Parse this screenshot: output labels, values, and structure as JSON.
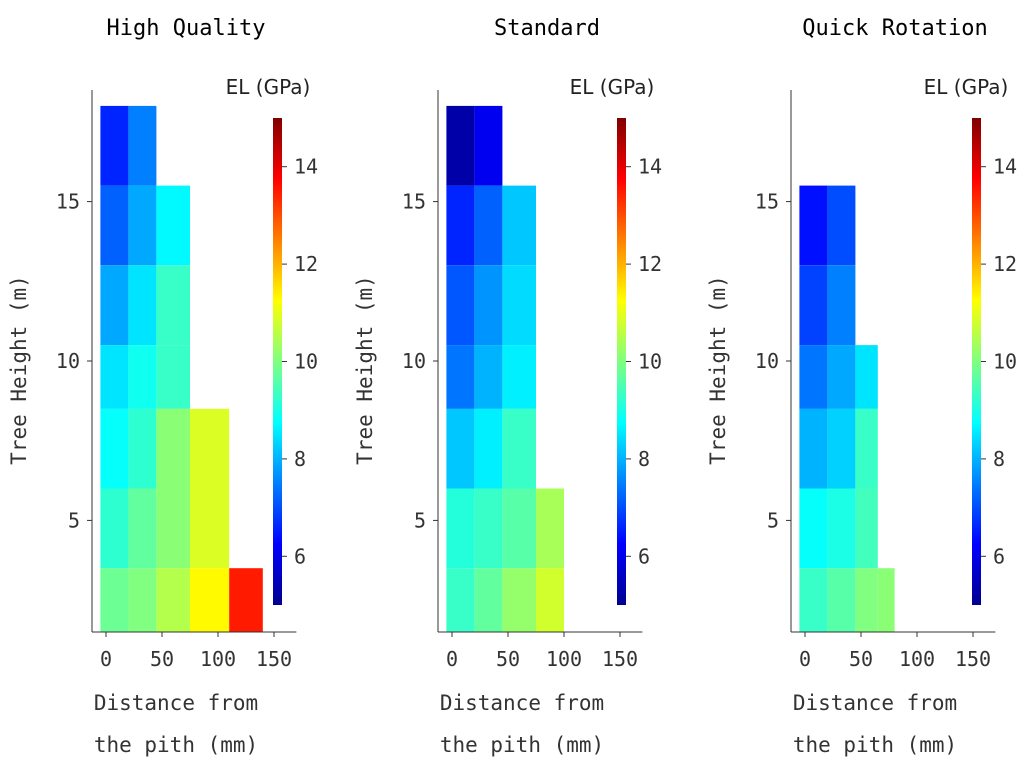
{
  "figure": {
    "colorbar_label": "EL (GPa)",
    "colormap": "jet",
    "color_range": [
      5,
      15
    ],
    "colorbar_ticks": [
      6,
      8,
      10,
      12,
      14
    ],
    "y_ticks": [
      5,
      10,
      15
    ],
    "y_label": "Tree Height (m)",
    "x_ticks": [
      0,
      50,
      100,
      150
    ],
    "x_label_line1": "Distance from",
    "x_label_line2": "the pith (mm)"
  },
  "chart_data": [
    {
      "type": "heatmap",
      "title": "High Quality",
      "xlabel": "Distance from the pith (mm)",
      "ylabel": "Tree Height (m)",
      "colorbar_label": "EL (GPa)",
      "xlim": [
        -10,
        170
      ],
      "ylim": [
        1.5,
        18.5
      ],
      "cells": [
        {
          "x": [
            -5,
            20
          ],
          "y": [
            15.5,
            18
          ],
          "value": 6.6
        },
        {
          "x": [
            20,
            45
          ],
          "y": [
            15.5,
            18
          ],
          "value": 7.5
        },
        {
          "x": [
            -5,
            20
          ],
          "y": [
            13.0,
            15.5
          ],
          "value": 7.2
        },
        {
          "x": [
            20,
            45
          ],
          "y": [
            13.0,
            15.5
          ],
          "value": 7.9
        },
        {
          "x": [
            45,
            75
          ],
          "y": [
            13.0,
            15.5
          ],
          "value": 8.7
        },
        {
          "x": [
            -5,
            20
          ],
          "y": [
            10.5,
            13.0
          ],
          "value": 7.9
        },
        {
          "x": [
            20,
            45
          ],
          "y": [
            10.5,
            13.0
          ],
          "value": 8.5
        },
        {
          "x": [
            45,
            75
          ],
          "y": [
            10.5,
            13.0
          ],
          "value": 9.3
        },
        {
          "x": [
            -5,
            20
          ],
          "y": [
            8.5,
            10.5
          ],
          "value": 8.5
        },
        {
          "x": [
            20,
            45
          ],
          "y": [
            8.5,
            10.5
          ],
          "value": 8.9
        },
        {
          "x": [
            45,
            75
          ],
          "y": [
            8.5,
            10.5
          ],
          "value": 9.3
        },
        {
          "x": [
            -5,
            20
          ],
          "y": [
            6.0,
            8.5
          ],
          "value": 8.8
        },
        {
          "x": [
            20,
            45
          ],
          "y": [
            6.0,
            8.5
          ],
          "value": 9.2
        },
        {
          "x": [
            45,
            75
          ],
          "y": [
            6.0,
            8.5
          ],
          "value": 10.1
        },
        {
          "x": [
            75,
            110
          ],
          "y": [
            6.0,
            8.5
          ],
          "value": 10.9
        },
        {
          "x": [
            -5,
            20
          ],
          "y": [
            3.5,
            6.0
          ],
          "value": 9.2
        },
        {
          "x": [
            20,
            45
          ],
          "y": [
            3.5,
            6.0
          ],
          "value": 9.7
        },
        {
          "x": [
            45,
            75
          ],
          "y": [
            3.5,
            6.0
          ],
          "value": 10.1
        },
        {
          "x": [
            75,
            110
          ],
          "y": [
            3.5,
            6.0
          ],
          "value": 10.9
        },
        {
          "x": [
            -5,
            20
          ],
          "y": [
            1.5,
            3.5
          ],
          "value": 9.8
        },
        {
          "x": [
            20,
            45
          ],
          "y": [
            1.5,
            3.5
          ],
          "value": 10.0
        },
        {
          "x": [
            45,
            75
          ],
          "y": [
            1.5,
            3.5
          ],
          "value": 10.5
        },
        {
          "x": [
            75,
            110
          ],
          "y": [
            1.5,
            3.5
          ],
          "value": 11.3
        },
        {
          "x": [
            110,
            140
          ],
          "y": [
            1.5,
            3.5
          ],
          "value": 13.5
        }
      ]
    },
    {
      "type": "heatmap",
      "title": "Standard",
      "xlabel": "Distance from the pith (mm)",
      "ylabel": "Tree Height (m)",
      "colorbar_label": "EL (GPa)",
      "xlim": [
        -10,
        170
      ],
      "ylim": [
        1.5,
        18.5
      ],
      "cells": [
        {
          "x": [
            -5,
            20
          ],
          "y": [
            15.5,
            18
          ],
          "value": 5.4
        },
        {
          "x": [
            20,
            45
          ],
          "y": [
            15.5,
            18
          ],
          "value": 6.1
        },
        {
          "x": [
            -5,
            20
          ],
          "y": [
            13.0,
            15.5
          ],
          "value": 6.6
        },
        {
          "x": [
            20,
            45
          ],
          "y": [
            13.0,
            15.5
          ],
          "value": 7.2
        },
        {
          "x": [
            45,
            75
          ],
          "y": [
            13.0,
            15.5
          ],
          "value": 8.2
        },
        {
          "x": [
            -5,
            20
          ],
          "y": [
            10.5,
            13.0
          ],
          "value": 7.1
        },
        {
          "x": [
            20,
            45
          ],
          "y": [
            10.5,
            13.0
          ],
          "value": 7.7
        },
        {
          "x": [
            45,
            75
          ],
          "y": [
            10.5,
            13.0
          ],
          "value": 8.4
        },
        {
          "x": [
            -5,
            20
          ],
          "y": [
            8.5,
            10.5
          ],
          "value": 7.4
        },
        {
          "x": [
            20,
            45
          ],
          "y": [
            8.5,
            10.5
          ],
          "value": 8.0
        },
        {
          "x": [
            45,
            75
          ],
          "y": [
            8.5,
            10.5
          ],
          "value": 8.6
        },
        {
          "x": [
            -5,
            20
          ],
          "y": [
            6.0,
            8.5
          ],
          "value": 8.2
        },
        {
          "x": [
            20,
            45
          ],
          "y": [
            6.0,
            8.5
          ],
          "value": 8.6
        },
        {
          "x": [
            45,
            75
          ],
          "y": [
            6.0,
            8.5
          ],
          "value": 9.3
        },
        {
          "x": [
            -5,
            20
          ],
          "y": [
            3.5,
            6.0
          ],
          "value": 9.1
        },
        {
          "x": [
            20,
            45
          ],
          "y": [
            3.5,
            6.0
          ],
          "value": 9.3
        },
        {
          "x": [
            45,
            75
          ],
          "y": [
            3.5,
            6.0
          ],
          "value": 9.6
        },
        {
          "x": [
            75,
            100
          ],
          "y": [
            3.5,
            6.0
          ],
          "value": 10.4
        },
        {
          "x": [
            -5,
            20
          ],
          "y": [
            1.5,
            3.5
          ],
          "value": 9.3
        },
        {
          "x": [
            20,
            45
          ],
          "y": [
            1.5,
            3.5
          ],
          "value": 9.7
        },
        {
          "x": [
            45,
            75
          ],
          "y": [
            1.5,
            3.5
          ],
          "value": 10.2
        },
        {
          "x": [
            75,
            100
          ],
          "y": [
            1.5,
            3.5
          ],
          "value": 10.8
        }
      ]
    },
    {
      "type": "heatmap",
      "title": "Quick Rotation",
      "xlabel": "Distance from the pith (mm)",
      "ylabel": "Tree Height (m)",
      "colorbar_label": "EL (GPa)",
      "xlim": [
        -10,
        170
      ],
      "ylim": [
        1.5,
        18.5
      ],
      "cells": [
        {
          "x": [
            -5,
            20
          ],
          "y": [
            13.0,
            15.5
          ],
          "value": 6.4
        },
        {
          "x": [
            20,
            45
          ],
          "y": [
            13.0,
            15.5
          ],
          "value": 7.0
        },
        {
          "x": [
            -5,
            20
          ],
          "y": [
            10.5,
            13.0
          ],
          "value": 6.9
        },
        {
          "x": [
            20,
            45
          ],
          "y": [
            10.5,
            13.0
          ],
          "value": 7.5
        },
        {
          "x": [
            -5,
            20
          ],
          "y": [
            8.5,
            10.5
          ],
          "value": 7.4
        },
        {
          "x": [
            20,
            45
          ],
          "y": [
            8.5,
            10.5
          ],
          "value": 7.9
        },
        {
          "x": [
            45,
            65
          ],
          "y": [
            8.5,
            10.5
          ],
          "value": 8.5
        },
        {
          "x": [
            -5,
            20
          ],
          "y": [
            6.0,
            8.5
          ],
          "value": 8.0
        },
        {
          "x": [
            20,
            45
          ],
          "y": [
            6.0,
            8.5
          ],
          "value": 8.3
        },
        {
          "x": [
            45,
            65
          ],
          "y": [
            6.0,
            8.5
          ],
          "value": 9.3
        },
        {
          "x": [
            -5,
            20
          ],
          "y": [
            3.5,
            6.0
          ],
          "value": 8.8
        },
        {
          "x": [
            20,
            45
          ],
          "y": [
            3.5,
            6.0
          ],
          "value": 9.0
        },
        {
          "x": [
            45,
            65
          ],
          "y": [
            3.5,
            6.0
          ],
          "value": 9.4
        },
        {
          "x": [
            -5,
            20
          ],
          "y": [
            1.5,
            3.5
          ],
          "value": 9.3
        },
        {
          "x": [
            20,
            45
          ],
          "y": [
            1.5,
            3.5
          ],
          "value": 9.6
        },
        {
          "x": [
            45,
            65
          ],
          "y": [
            1.5,
            3.5
          ],
          "value": 10.0
        },
        {
          "x": [
            65,
            80
          ],
          "y": [
            1.5,
            3.5
          ],
          "value": 10.1
        }
      ]
    }
  ]
}
